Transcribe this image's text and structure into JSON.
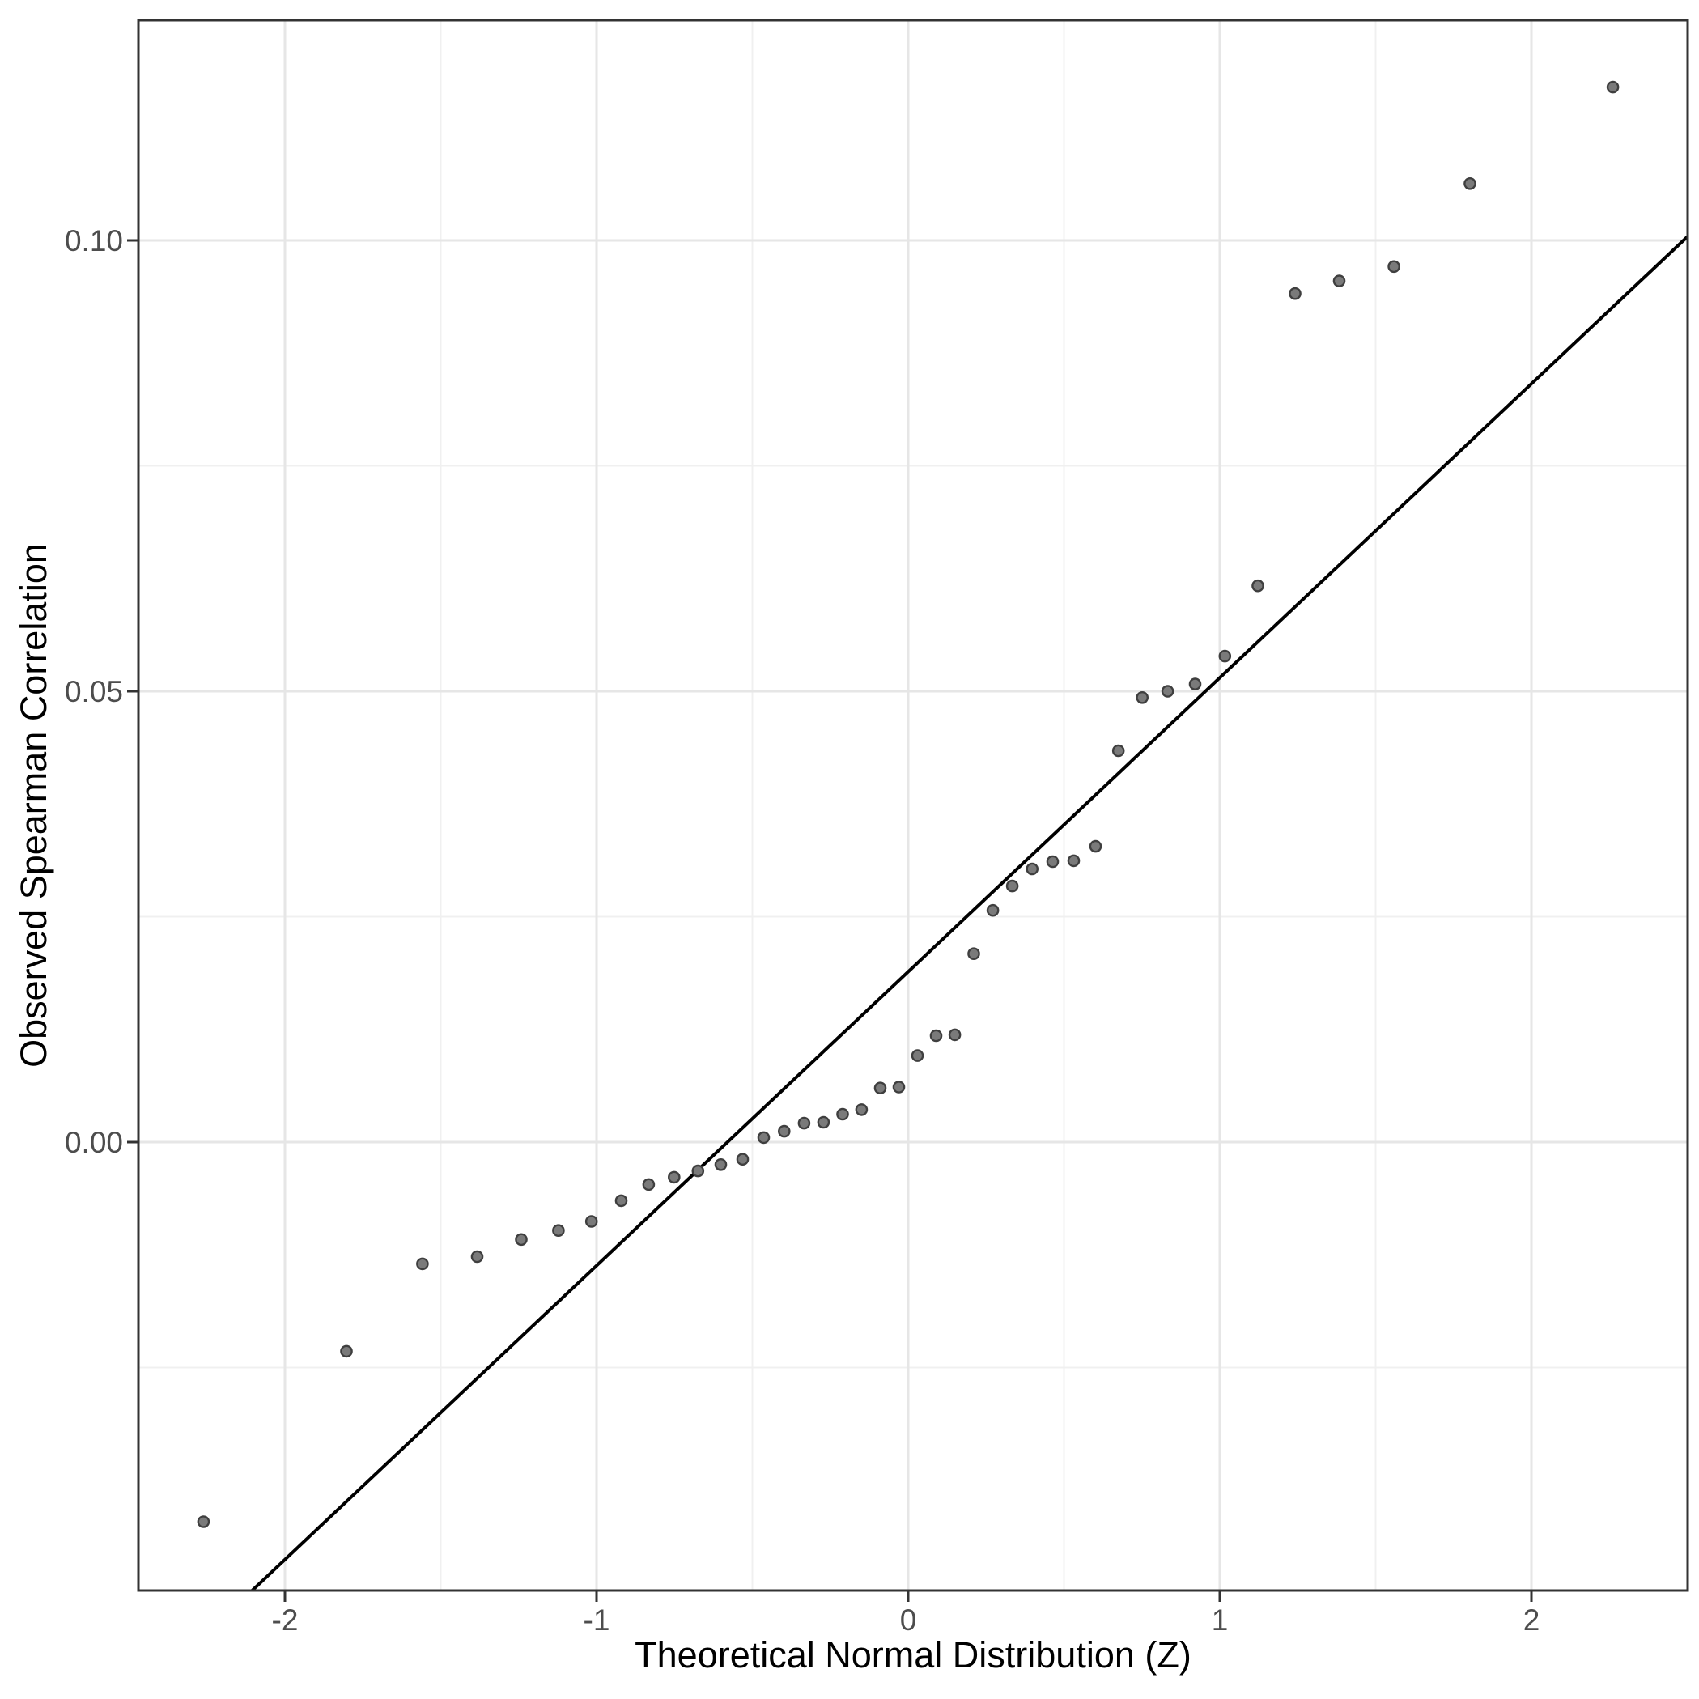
{
  "chart_data": {
    "type": "scatter",
    "title": "",
    "xlabel": "Theoretical Normal Distribution (Z)",
    "ylabel": "Observed Spearman Correlation",
    "xlim": [
      -2.4701,
      2.5013
    ],
    "ylim": [
      -0.049731,
      0.124417
    ],
    "grid": true,
    "legend_position": "none",
    "x_ticks": {
      "major": [
        -2,
        -1,
        0,
        1,
        2
      ],
      "labels": [
        "-2",
        "-1",
        "0",
        "1",
        "2"
      ],
      "minor": [
        -1.5,
        -0.5,
        0.5,
        1.5
      ]
    },
    "y_ticks": {
      "major": [
        0.0,
        0.05,
        0.1
      ],
      "labels": [
        "0.00",
        "0.05",
        "0.10"
      ],
      "minor": [
        -0.025,
        0.025,
        0.075
      ]
    },
    "series": [
      {
        "name": "sample-quantiles",
        "points": [
          [
            -2.2612,
            -0.0421
          ],
          [
            -1.8027,
            -0.0232
          ],
          [
            -1.5588,
            -0.0135
          ],
          [
            -1.383,
            -0.0127
          ],
          [
            -1.2415,
            -0.0108
          ],
          [
            -1.1222,
            -0.0098
          ],
          [
            -1.0164,
            -0.0088
          ],
          [
            -0.9208,
            -0.0065
          ],
          [
            -0.8328,
            -0.0047
          ],
          [
            -0.7512,
            -0.0039
          ],
          [
            -0.6745,
            -0.0032
          ],
          [
            -0.6013,
            -0.0025
          ],
          [
            -0.5312,
            -0.0019
          ],
          [
            -0.4637,
            0.0005
          ],
          [
            -0.398,
            0.0012
          ],
          [
            -0.3341,
            0.0021
          ],
          [
            -0.2716,
            0.0022
          ],
          [
            -0.2104,
            0.0031
          ],
          [
            -0.1497,
            0.0036
          ],
          [
            -0.0896,
            0.006
          ],
          [
            -0.0299,
            0.0061
          ],
          [
            0.0299,
            0.0096
          ],
          [
            0.0896,
            0.0118
          ],
          [
            0.1497,
            0.0119
          ],
          [
            0.2104,
            0.0209
          ],
          [
            0.2716,
            0.0257
          ],
          [
            0.3341,
            0.0284
          ],
          [
            0.398,
            0.0303
          ],
          [
            0.4637,
            0.0311
          ],
          [
            0.5312,
            0.0312
          ],
          [
            0.6013,
            0.0328
          ],
          [
            0.6745,
            0.0434
          ],
          [
            0.7512,
            0.0493
          ],
          [
            0.8328,
            0.05
          ],
          [
            0.9208,
            0.0508
          ],
          [
            1.0164,
            0.0539
          ],
          [
            1.1222,
            0.0617
          ],
          [
            1.2415,
            0.0941
          ],
          [
            1.383,
            0.0955
          ],
          [
            1.5588,
            0.0971
          ],
          [
            1.8027,
            0.1063
          ],
          [
            2.2612,
            0.117
          ]
        ]
      }
    ],
    "reference_line": {
      "name": "qq-line",
      "slope": 0.0326,
      "intercept": 0.0189
    }
  },
  "style": {
    "background": "#ffffff",
    "panel_background": "#ffffff",
    "panel_border": "#333333",
    "grid_major": "#e6e6e6",
    "grid_minor": "#f0f0f0",
    "point_fill": "#7a7a7a",
    "point_stroke": "#3f3f3f",
    "line_color": "#000000",
    "tick_color": "#333333",
    "tick_label_color": "#4d4d4d",
    "title_color": "#000000"
  }
}
